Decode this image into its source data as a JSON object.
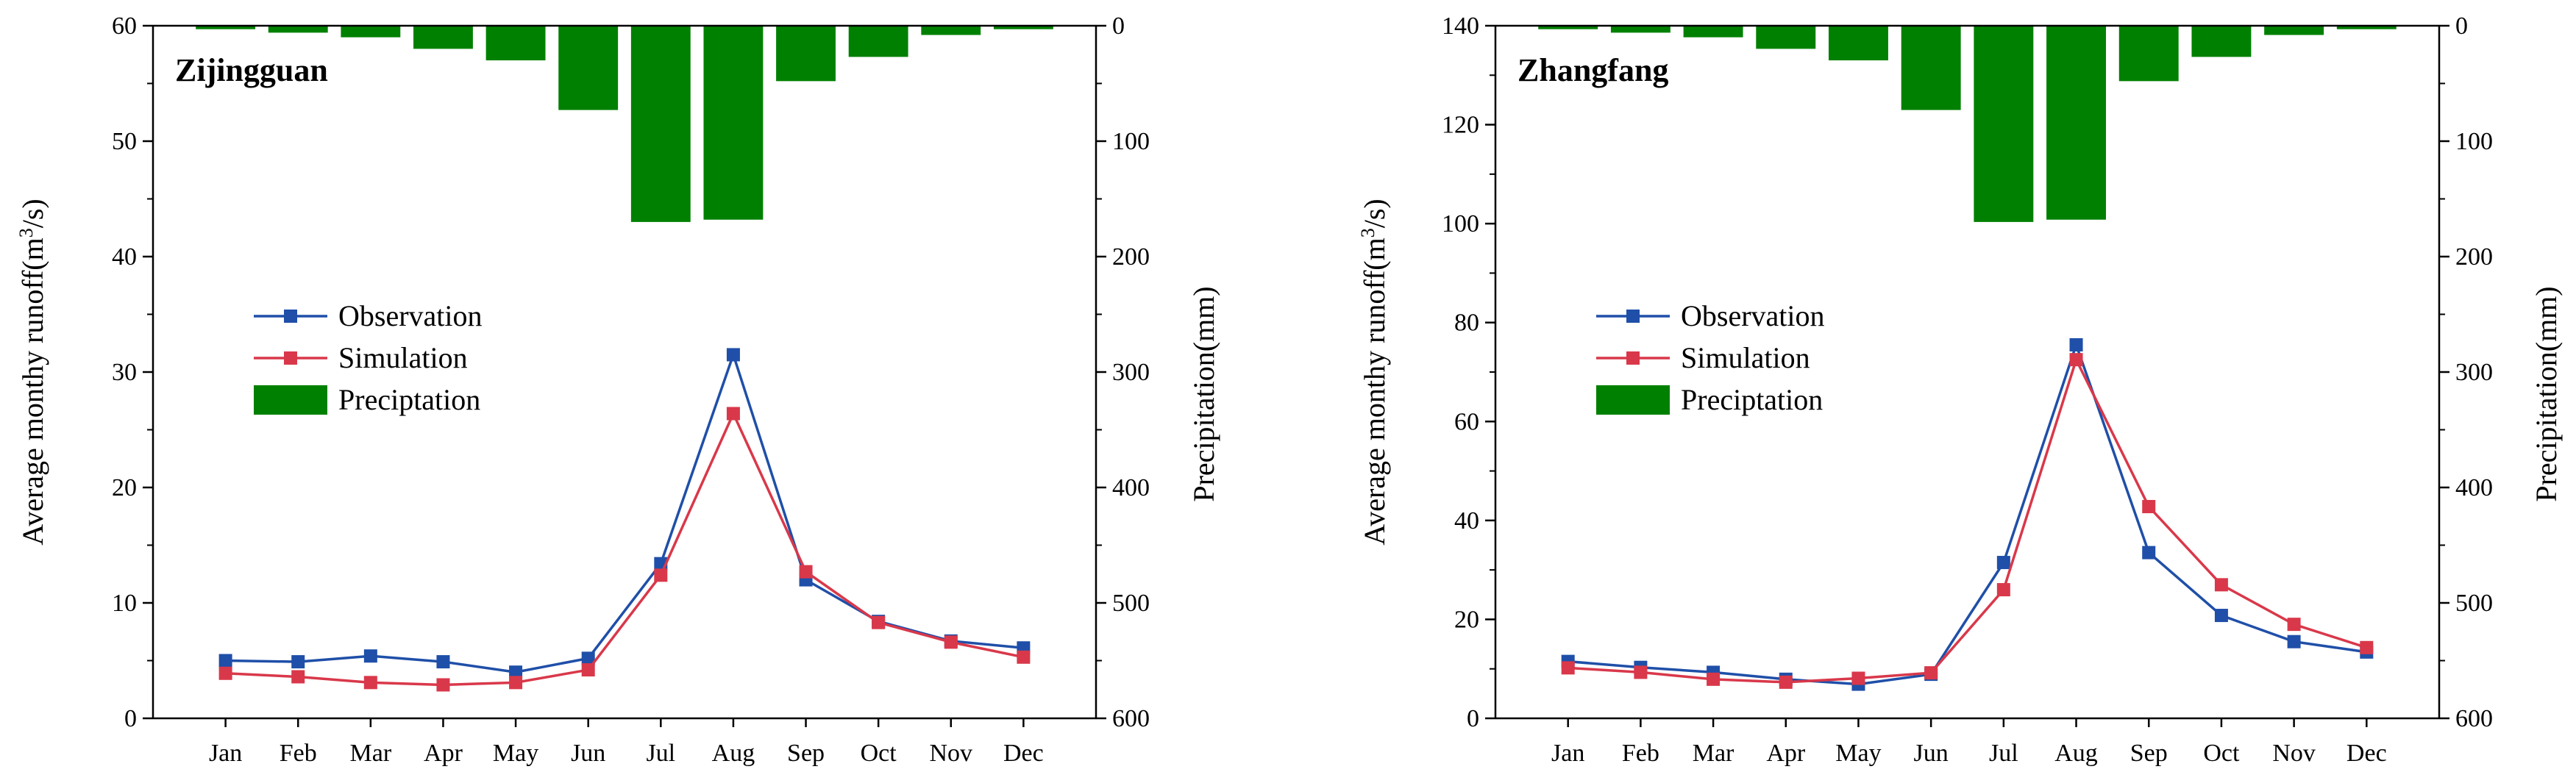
{
  "chart_data": [
    {
      "type": "line",
      "title": "Zijingguan",
      "categories": [
        "Jan",
        "Feb",
        "Mar",
        "Apr",
        "May",
        "Jun",
        "Jul",
        "Aug",
        "Sep",
        "Oct",
        "Nov",
        "Dec"
      ],
      "ylabel": "Average monthy runoff(m³/s)",
      "ylabel_parts": {
        "pre": "Average monthy runoff(m",
        "sup": "3",
        "post": "/s)"
      },
      "y2label": "Precipitation(mm)",
      "ylim": [
        0,
        60
      ],
      "yticks": [
        "0",
        "10",
        "20",
        "30",
        "40",
        "50",
        "60"
      ],
      "y2lim": [
        0,
        600
      ],
      "y2ticks": [
        "0",
        "100",
        "200",
        "300",
        "400",
        "500",
        "600"
      ],
      "series": [
        {
          "name": "Observation",
          "kind": "line",
          "color": "#1f4fa8",
          "values": [
            5.0,
            4.9,
            5.4,
            4.9,
            4.0,
            5.2,
            13.4,
            31.5,
            12.0,
            8.4,
            6.7,
            6.1
          ]
        },
        {
          "name": "Simulation",
          "kind": "line",
          "color": "#d9384a",
          "values": [
            3.9,
            3.6,
            3.1,
            2.9,
            3.1,
            4.2,
            12.4,
            26.4,
            12.7,
            8.3,
            6.6,
            5.3
          ]
        },
        {
          "name": "Preciptation",
          "kind": "bar",
          "color": "#008000",
          "axis": "right",
          "values": [
            3,
            6,
            10,
            20,
            30,
            73,
            170,
            168,
            48,
            27,
            8,
            3
          ]
        }
      ],
      "legend": "center-left"
    },
    {
      "type": "line",
      "title": "Zhangfang",
      "categories": [
        "Jan",
        "Feb",
        "Mar",
        "Apr",
        "May",
        "Jun",
        "Jul",
        "Aug",
        "Sep",
        "Oct",
        "Nov",
        "Dec"
      ],
      "ylabel": "Average monthy runoff(m³/s)",
      "ylabel_parts": {
        "pre": "Average monthy runoff(m",
        "sup": "3",
        "post": "/s)"
      },
      "y2label": "Precipitation(mm)",
      "ylim": [
        0,
        140
      ],
      "yticks": [
        "0",
        "20",
        "40",
        "60",
        "80",
        "100",
        "120",
        "140"
      ],
      "y2lim": [
        0,
        600
      ],
      "y2ticks": [
        "0",
        "100",
        "200",
        "300",
        "400",
        "500",
        "600"
      ],
      "series": [
        {
          "name": "Observation",
          "kind": "line",
          "color": "#1f4fa8",
          "values": [
            11.5,
            10.3,
            9.3,
            7.9,
            6.9,
            8.9,
            31.5,
            75.5,
            33.5,
            20.8,
            15.5,
            13.4
          ]
        },
        {
          "name": "Simulation",
          "kind": "line",
          "color": "#d9384a",
          "values": [
            10.2,
            9.3,
            7.9,
            7.3,
            8.1,
            9.2,
            26.0,
            72.5,
            42.8,
            27.0,
            19.0,
            14.3
          ]
        },
        {
          "name": "Preciptation",
          "kind": "bar",
          "color": "#008000",
          "axis": "right",
          "values": [
            3,
            6,
            10,
            20,
            30,
            73,
            170,
            168,
            48,
            27,
            8,
            3
          ]
        }
      ],
      "legend": "center-left"
    }
  ]
}
